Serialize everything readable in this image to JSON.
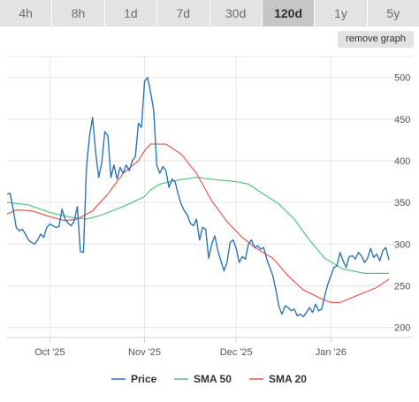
{
  "range_tabs": [
    {
      "label": "4h",
      "active": false
    },
    {
      "label": "8h",
      "active": false
    },
    {
      "label": "1d",
      "active": false
    },
    {
      "label": "7d",
      "active": false
    },
    {
      "label": "30d",
      "active": false
    },
    {
      "label": "120d",
      "active": true
    },
    {
      "label": "1y",
      "active": false
    },
    {
      "label": "5y",
      "active": false
    }
  ],
  "remove_graph_label": "remove graph",
  "colors": {
    "price": "#2e74b5",
    "sma50": "#4cc77f",
    "sma20": "#e8574f",
    "grid": "#e6e6e6",
    "tab_bg": "#e3e3e3",
    "tab_active_bg": "#c6c6c6"
  },
  "chart_data": {
    "type": "line",
    "x_range": [
      "2025-09-17",
      "2026-01-20"
    ],
    "y_range": [
      188,
      525
    ],
    "y_ticks": [
      {
        "value": 200,
        "label": "200"
      },
      {
        "value": 250,
        "label": "250"
      },
      {
        "value": 300,
        "label": "300"
      },
      {
        "value": 350,
        "label": "350"
      },
      {
        "value": 400,
        "label": "400"
      },
      {
        "value": 450,
        "label": "450"
      },
      {
        "value": 500,
        "label": "500"
      }
    ],
    "x_ticks": [
      {
        "date": "2025-10-01",
        "label": "Oct '25"
      },
      {
        "date": "2025-11-01",
        "label": "Nov '25"
      },
      {
        "date": "2025-12-01",
        "label": "Dec '25"
      },
      {
        "date": "2026-01-01",
        "label": "Jan '26"
      }
    ],
    "grid": true,
    "legend_position": "bottom",
    "series": [
      {
        "name": "Price",
        "color": "#2e74b5",
        "points": [
          [
            "2025-09-17",
            360
          ],
          [
            "2025-09-18",
            361
          ],
          [
            "2025-09-19",
            342
          ],
          [
            "2025-09-20",
            320
          ],
          [
            "2025-09-21",
            316
          ],
          [
            "2025-09-22",
            318
          ],
          [
            "2025-09-23",
            312
          ],
          [
            "2025-09-24",
            305
          ],
          [
            "2025-09-25",
            302
          ],
          [
            "2025-09-26",
            300
          ],
          [
            "2025-09-27",
            305
          ],
          [
            "2025-09-28",
            312
          ],
          [
            "2025-09-29",
            308
          ],
          [
            "2025-09-30",
            320
          ],
          [
            "2025-10-01",
            324
          ],
          [
            "2025-10-02",
            322
          ],
          [
            "2025-10-03",
            320
          ],
          [
            "2025-10-04",
            321
          ],
          [
            "2025-10-05",
            342
          ],
          [
            "2025-10-06",
            330
          ],
          [
            "2025-10-07",
            325
          ],
          [
            "2025-10-08",
            322
          ],
          [
            "2025-10-09",
            328
          ],
          [
            "2025-10-10",
            345
          ],
          [
            "2025-10-11",
            291
          ],
          [
            "2025-10-12",
            290
          ],
          [
            "2025-10-13",
            393
          ],
          [
            "2025-10-14",
            430
          ],
          [
            "2025-10-15",
            452
          ],
          [
            "2025-10-16",
            410
          ],
          [
            "2025-10-17",
            380
          ],
          [
            "2025-10-18",
            398
          ],
          [
            "2025-10-19",
            435
          ],
          [
            "2025-10-20",
            430
          ],
          [
            "2025-10-21",
            380
          ],
          [
            "2025-10-22",
            395
          ],
          [
            "2025-10-23",
            378
          ],
          [
            "2025-10-24",
            392
          ],
          [
            "2025-10-25",
            385
          ],
          [
            "2025-10-26",
            395
          ],
          [
            "2025-10-27",
            388
          ],
          [
            "2025-10-28",
            400
          ],
          [
            "2025-10-29",
            405
          ],
          [
            "2025-10-30",
            445
          ],
          [
            "2025-10-31",
            440
          ],
          [
            "2025-11-01",
            495
          ],
          [
            "2025-11-02",
            500
          ],
          [
            "2025-11-03",
            482
          ],
          [
            "2025-11-04",
            460
          ],
          [
            "2025-11-05",
            395
          ],
          [
            "2025-11-06",
            385
          ],
          [
            "2025-11-07",
            393
          ],
          [
            "2025-11-08",
            388
          ],
          [
            "2025-11-09",
            368
          ],
          [
            "2025-11-10",
            378
          ],
          [
            "2025-11-11",
            375
          ],
          [
            "2025-11-12",
            360
          ],
          [
            "2025-11-13",
            348
          ],
          [
            "2025-11-14",
            340
          ],
          [
            "2025-11-15",
            335
          ],
          [
            "2025-11-16",
            325
          ],
          [
            "2025-11-17",
            322
          ],
          [
            "2025-11-18",
            330
          ],
          [
            "2025-11-19",
            305
          ],
          [
            "2025-11-20",
            320
          ],
          [
            "2025-11-21",
            318
          ],
          [
            "2025-11-22",
            283
          ],
          [
            "2025-11-23",
            300
          ],
          [
            "2025-11-24",
            310
          ],
          [
            "2025-11-25",
            292
          ],
          [
            "2025-11-26",
            280
          ],
          [
            "2025-11-27",
            268
          ],
          [
            "2025-11-28",
            278
          ],
          [
            "2025-11-29",
            302
          ],
          [
            "2025-11-30",
            305
          ],
          [
            "2025-12-01",
            295
          ],
          [
            "2025-12-02",
            278
          ],
          [
            "2025-12-03",
            285
          ],
          [
            "2025-12-04",
            282
          ],
          [
            "2025-12-05",
            300
          ],
          [
            "2025-12-06",
            305
          ],
          [
            "2025-12-07",
            296
          ],
          [
            "2025-12-08",
            298
          ],
          [
            "2025-12-09",
            294
          ],
          [
            "2025-12-10",
            296
          ],
          [
            "2025-12-11",
            282
          ],
          [
            "2025-12-12",
            272
          ],
          [
            "2025-12-13",
            262
          ],
          [
            "2025-12-14",
            245
          ],
          [
            "2025-12-15",
            225
          ],
          [
            "2025-12-16",
            216
          ],
          [
            "2025-12-17",
            226
          ],
          [
            "2025-12-18",
            224
          ],
          [
            "2025-12-19",
            220
          ],
          [
            "2025-12-20",
            222
          ],
          [
            "2025-12-21",
            214
          ],
          [
            "2025-12-22",
            216
          ],
          [
            "2025-12-23",
            213
          ],
          [
            "2025-12-24",
            218
          ],
          [
            "2025-12-25",
            224
          ],
          [
            "2025-12-26",
            218
          ],
          [
            "2025-12-27",
            228
          ],
          [
            "2025-12-28",
            220
          ],
          [
            "2025-12-29",
            222
          ],
          [
            "2025-12-30",
            238
          ],
          [
            "2025-12-31",
            252
          ],
          [
            "2026-01-01",
            262
          ],
          [
            "2026-01-02",
            272
          ],
          [
            "2026-01-03",
            274
          ],
          [
            "2026-01-04",
            290
          ],
          [
            "2026-01-05",
            280
          ],
          [
            "2026-01-06",
            272
          ],
          [
            "2026-01-07",
            285
          ],
          [
            "2026-01-08",
            286
          ],
          [
            "2026-01-09",
            282
          ],
          [
            "2026-01-10",
            290
          ],
          [
            "2026-01-11",
            286
          ],
          [
            "2026-01-12",
            278
          ],
          [
            "2026-01-13",
            283
          ],
          [
            "2026-01-14",
            295
          ],
          [
            "2026-01-15",
            284
          ],
          [
            "2026-01-16",
            288
          ],
          [
            "2026-01-17",
            280
          ],
          [
            "2026-01-18",
            292
          ],
          [
            "2026-01-19",
            296
          ],
          [
            "2026-01-20",
            281
          ]
        ]
      },
      {
        "name": "SMA 50",
        "color": "#4cc77f",
        "points": [
          [
            "2025-09-17",
            350
          ],
          [
            "2025-09-24",
            347
          ],
          [
            "2025-10-01",
            338
          ],
          [
            "2025-10-08",
            332
          ],
          [
            "2025-10-13",
            330
          ],
          [
            "2025-10-18",
            335
          ],
          [
            "2025-10-25",
            345
          ],
          [
            "2025-11-01",
            357
          ],
          [
            "2025-11-03",
            365
          ],
          [
            "2025-11-06",
            372
          ],
          [
            "2025-11-12",
            377
          ],
          [
            "2025-11-18",
            380
          ],
          [
            "2025-11-25",
            377
          ],
          [
            "2025-12-01",
            375
          ],
          [
            "2025-12-05",
            372
          ],
          [
            "2025-12-10",
            360
          ],
          [
            "2025-12-15",
            348
          ],
          [
            "2025-12-20",
            330
          ],
          [
            "2025-12-25",
            305
          ],
          [
            "2025-12-30",
            283
          ],
          [
            "2026-01-05",
            270
          ],
          [
            "2026-01-12",
            265
          ],
          [
            "2026-01-20",
            265
          ]
        ]
      },
      {
        "name": "SMA 20",
        "color": "#e8574f",
        "points": [
          [
            "2025-09-17",
            336
          ],
          [
            "2025-09-20",
            341
          ],
          [
            "2025-09-25",
            340
          ],
          [
            "2025-10-01",
            333
          ],
          [
            "2025-10-06",
            328
          ],
          [
            "2025-10-10",
            330
          ],
          [
            "2025-10-15",
            340
          ],
          [
            "2025-10-20",
            360
          ],
          [
            "2025-10-25",
            385
          ],
          [
            "2025-10-30",
            400
          ],
          [
            "2025-11-01",
            412
          ],
          [
            "2025-11-03",
            420
          ],
          [
            "2025-11-08",
            420
          ],
          [
            "2025-11-13",
            408
          ],
          [
            "2025-11-18",
            385
          ],
          [
            "2025-11-23",
            352
          ],
          [
            "2025-11-28",
            327
          ],
          [
            "2025-12-03",
            308
          ],
          [
            "2025-12-08",
            294
          ],
          [
            "2025-12-13",
            283
          ],
          [
            "2025-12-18",
            262
          ],
          [
            "2025-12-23",
            245
          ],
          [
            "2025-12-28",
            236
          ],
          [
            "2026-01-01",
            230
          ],
          [
            "2026-01-04",
            230
          ],
          [
            "2026-01-08",
            236
          ],
          [
            "2026-01-12",
            242
          ],
          [
            "2026-01-16",
            248
          ],
          [
            "2026-01-20",
            258
          ]
        ]
      }
    ]
  }
}
